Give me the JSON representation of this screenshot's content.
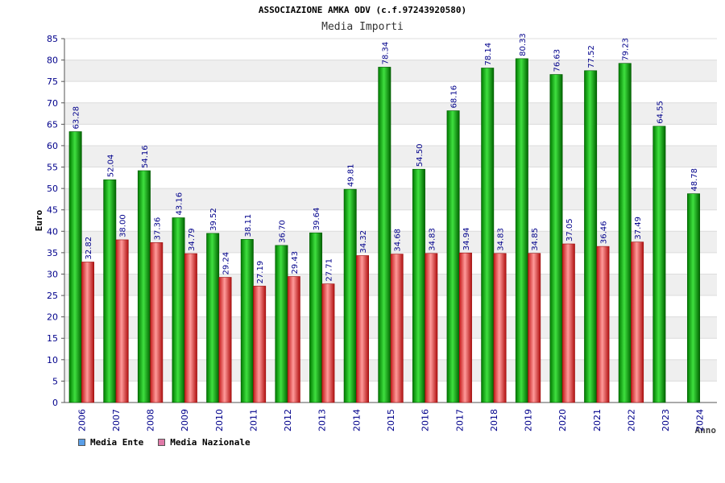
{
  "title": "ASSOCIAZIONE AMKA ODV (c.f.97243920580)",
  "subtitle": "Media Importi",
  "colors": {
    "ente": "#0a9a0a",
    "nazionale": "#e53a3a",
    "legend_ente": "#5a9fe8",
    "legend_nazionale": "#e07aa8",
    "axis_text": "#00008b",
    "grid_band": "#efefef"
  },
  "chart_data": {
    "type": "bar",
    "title": "ASSOCIAZIONE AMKA ODV (c.f.97243920580)",
    "subtitle": "Media Importi",
    "xlabel": "Anno",
    "ylabel": "Euro",
    "ylim": [
      0,
      85
    ],
    "yticks": [
      0,
      5,
      10,
      15,
      20,
      25,
      30,
      35,
      40,
      45,
      50,
      55,
      60,
      65,
      70,
      75,
      80,
      85
    ],
    "grid": true,
    "legend_position": "bottom-left",
    "categories": [
      "2006",
      "2007",
      "2008",
      "2009",
      "2010",
      "2011",
      "2012",
      "2013",
      "2014",
      "2015",
      "2016",
      "2017",
      "2018",
      "2019",
      "2020",
      "2021",
      "2022",
      "2023",
      "2024"
    ],
    "series": [
      {
        "name": "Media Ente",
        "values": [
          63.28,
          52.04,
          54.16,
          43.16,
          39.52,
          38.11,
          36.7,
          39.64,
          49.81,
          78.34,
          54.5,
          68.16,
          78.14,
          80.33,
          76.63,
          77.52,
          79.23,
          64.55,
          48.78
        ],
        "labels": [
          "63.28",
          "52.04",
          "54.16",
          "43.16",
          "39.52",
          "38.11",
          "36.70",
          "39.64",
          "49.81",
          "78.34",
          "54.50",
          "68.16",
          "78.14",
          "80.33",
          "76.63",
          "77.52",
          "79.23",
          "64.55",
          "48.78"
        ]
      },
      {
        "name": "Media Nazionale",
        "values": [
          32.82,
          38.0,
          37.36,
          34.79,
          29.24,
          27.19,
          29.43,
          27.71,
          34.32,
          34.68,
          34.83,
          34.94,
          34.83,
          34.85,
          37.05,
          36.46,
          37.49,
          null,
          null
        ],
        "labels": [
          "32.82",
          "38.00",
          "37.36",
          "34.79",
          "29.24",
          "27.19",
          "29.43",
          "27.71",
          "34.32",
          "34.68",
          "34.83",
          "34.94",
          "34.83",
          "34.85",
          "37.05",
          "36.46",
          "37.49",
          "",
          ""
        ]
      }
    ]
  }
}
